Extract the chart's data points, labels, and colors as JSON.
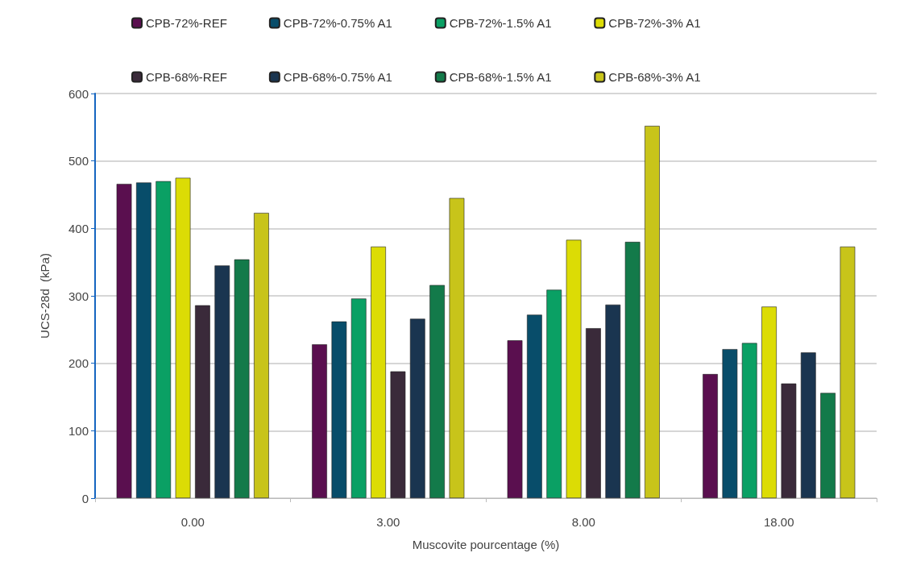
{
  "chart_data": {
    "type": "bar",
    "xlabel": "Muscovite pourcentage (%)",
    "ylabel": "UCS-28d  (kPa)",
    "categories": [
      "0.00",
      "3.00",
      "8.00",
      "18.00"
    ],
    "series": [
      {
        "name": "CPB-72%-REF",
        "color": "#5a0f4f",
        "values": [
          466,
          228,
          234,
          184
        ]
      },
      {
        "name": "CPB-72%-0.75% A1",
        "color": "#084d6a",
        "values": [
          468,
          262,
          272,
          221
        ]
      },
      {
        "name": "CPB-72%-1.5% A1",
        "color": "#0aa064",
        "values": [
          470,
          296,
          309,
          230
        ]
      },
      {
        "name": "CPB-72%-3% A1",
        "color": "#dcdc05",
        "values": [
          475,
          373,
          383,
          284
        ]
      },
      {
        "name": "CPB-68%-REF",
        "color": "#3a2a3a",
        "values": [
          286,
          188,
          252,
          170
        ]
      },
      {
        "name": "CPB-68%-0.75% A1",
        "color": "#1a3550",
        "values": [
          345,
          266,
          287,
          216
        ]
      },
      {
        "name": "CPB-68%-1.5% A1",
        "color": "#137a4a",
        "values": [
          354,
          316,
          380,
          156
        ]
      },
      {
        "name": "CPB-68%-3% A1",
        "color": "#c8c41a",
        "values": [
          423,
          445,
          552,
          373
        ]
      }
    ],
    "ylim": [
      0,
      600
    ],
    "yticks": [
      0,
      100,
      200,
      300,
      400,
      500,
      600
    ],
    "grid": "y",
    "legend": "top"
  }
}
